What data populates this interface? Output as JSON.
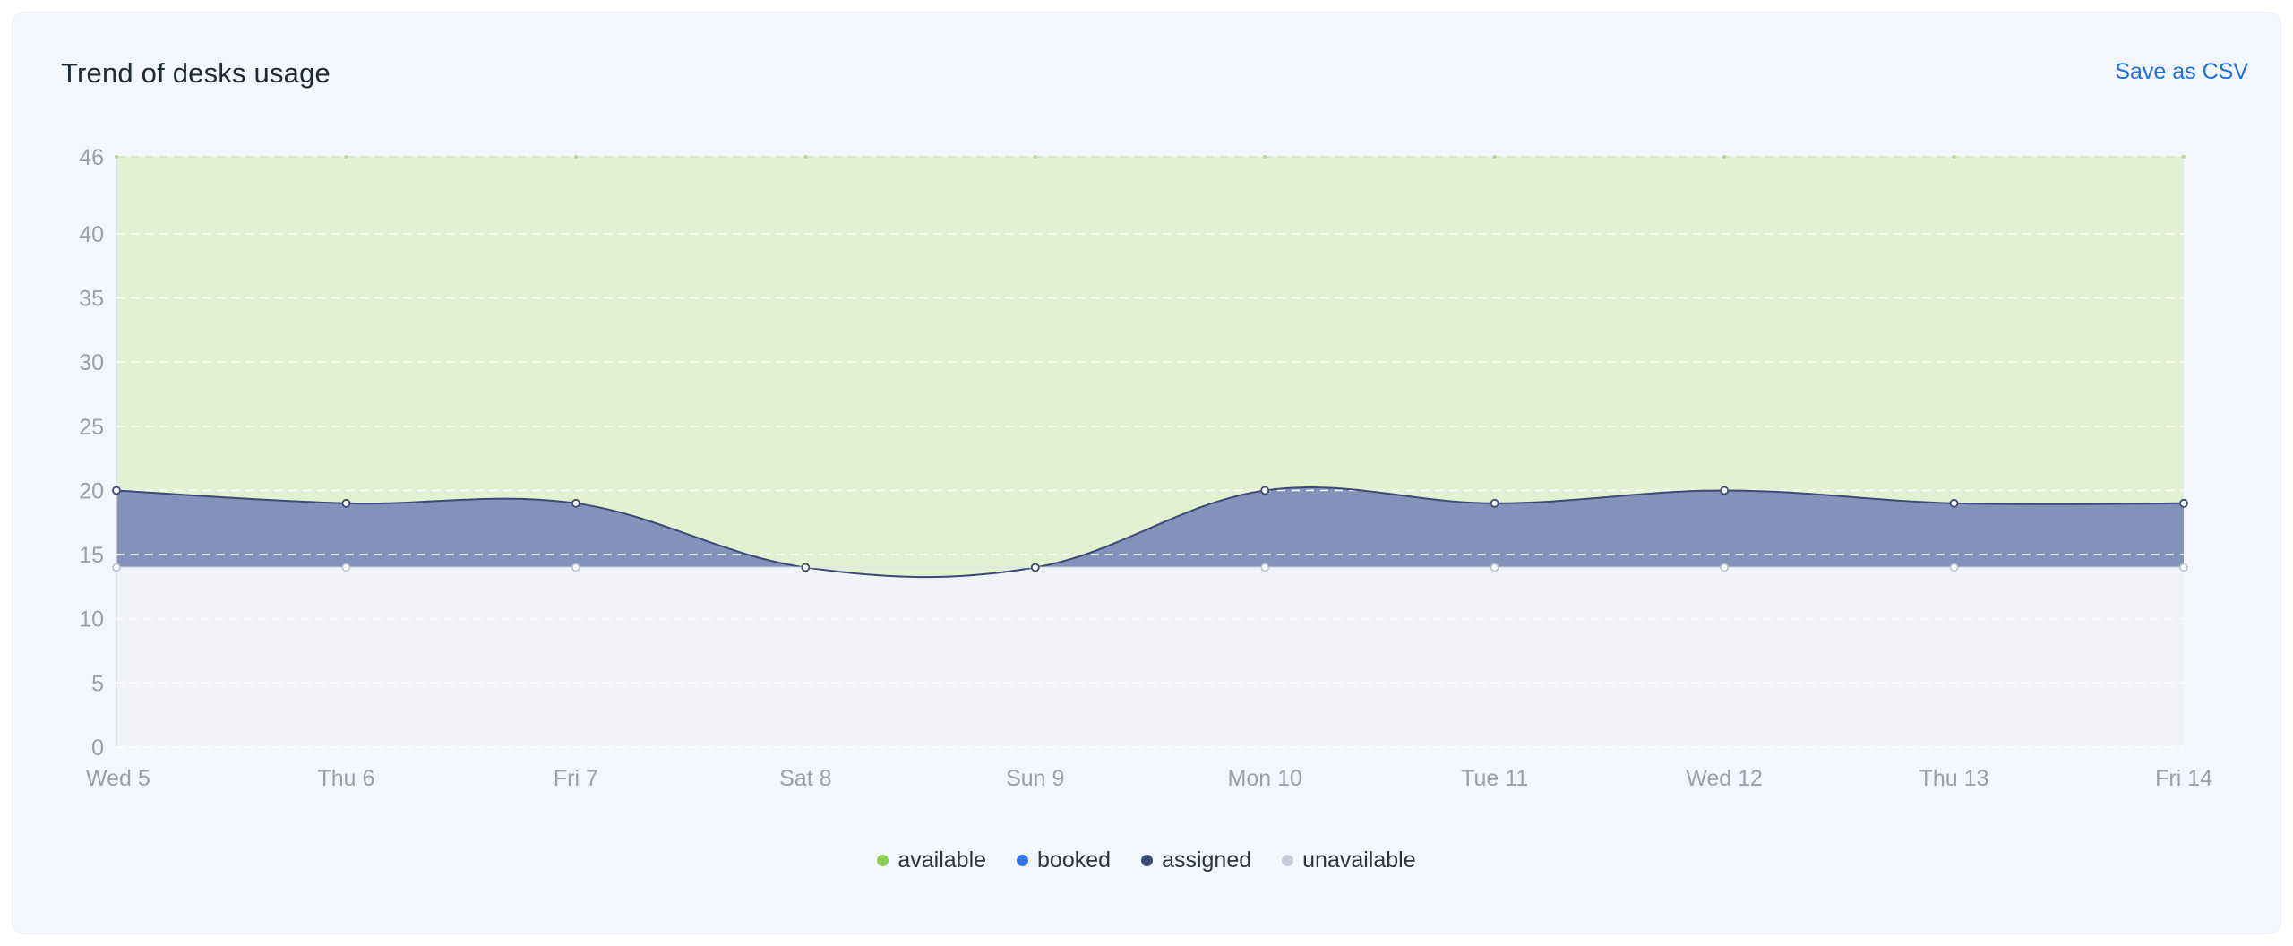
{
  "card": {
    "title": "Trend of desks usage",
    "save_csv_label": "Save as CSV"
  },
  "colors": {
    "available": "#8fcf4f",
    "available_fill": "#e2f1d0",
    "booked": "#2f74e8",
    "assigned": "#3b4b74",
    "assigned_fill": "#8193b8",
    "unavailable": "#c4ccd9",
    "unavailable_fill": "#f2f3f7",
    "tick_text": "#9aa0a8",
    "grid": "#ffffff"
  },
  "chart_data": {
    "type": "area",
    "stacked": true,
    "categories": [
      "Wed 5",
      "Thu 6",
      "Fri 7",
      "Sat 8",
      "Sun 9",
      "Mon 10",
      "Tue 11",
      "Wed 12",
      "Thu 13",
      "Fri 14"
    ],
    "yticks": [
      0,
      5,
      10,
      15,
      20,
      25,
      30,
      35,
      40,
      46
    ],
    "ylim": [
      0,
      46
    ],
    "grid": true,
    "legend_position": "bottom-center",
    "series": [
      {
        "name": "unavailable",
        "values": [
          14,
          14,
          14,
          14,
          14,
          14,
          14,
          14,
          14,
          14
        ]
      },
      {
        "name": "assigned",
        "values": [
          6,
          5,
          5,
          0,
          0,
          6,
          5,
          6,
          5,
          5
        ]
      },
      {
        "name": "booked",
        "values": [
          0,
          0,
          0,
          0,
          0,
          0,
          0,
          0,
          0,
          0
        ]
      },
      {
        "name": "available",
        "values": [
          26,
          27,
          27,
          32,
          32,
          26,
          27,
          26,
          27,
          27
        ]
      }
    ]
  }
}
